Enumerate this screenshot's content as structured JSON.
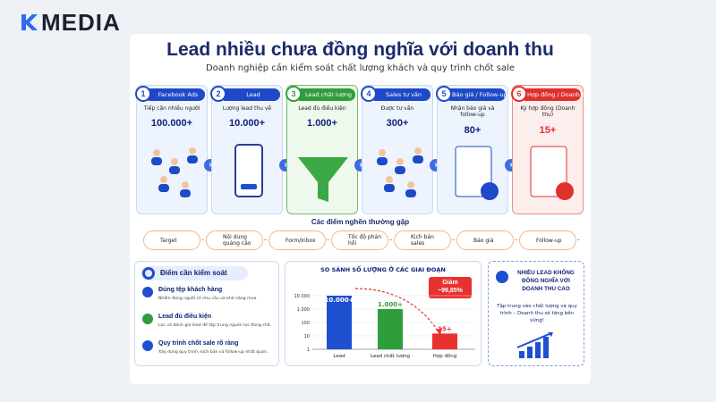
{
  "logo": "MEDIA",
  "title": "Lead nhiều chưa đồng nghĩa với doanh thu",
  "subtitle": "Doanh nghiệp cần kiểm soát chất lượng khách và quy trình chốt sale",
  "steps": [
    {
      "number": "1",
      "label": "Facebook Ads",
      "desc": "Tiếp cận nhiều người",
      "value": "100.000+"
    },
    {
      "number": "2",
      "label": "Lead",
      "desc": "Lượng lead thu về",
      "value": "10.000+"
    },
    {
      "number": "3",
      "label": "Lead chất lượng",
      "desc": "Lead đủ điều kiện",
      "value": "1.000+"
    },
    {
      "number": "4",
      "label": "Sales tư vấn",
      "desc": "Được tư vấn",
      "value": "300+"
    },
    {
      "number": "5",
      "label": "Báo giá / Follow-up",
      "desc": "Nhận báo giá và follow-up",
      "value": "80+"
    },
    {
      "number": "6",
      "label": "Hợp đồng / Doanh thu",
      "desc": "Ký hợp đồng (Doanh thu)",
      "value": "15+"
    }
  ],
  "bottlenecks": {
    "title": "Các điểm nghẽn thường gặp",
    "items": [
      "Target",
      "Nội dung quảng cáo",
      "Form/Inbox",
      "Tốc độ phản hồi",
      "Kịch bản sales",
      "Báo giá",
      "Follow-up"
    ]
  },
  "controls": {
    "title": "Điểm cần kiểm soát",
    "items": [
      {
        "title": "Đúng tệp khách hàng",
        "desc": "Nhắm đúng người có nhu cầu và khả năng mua."
      },
      {
        "title": "Lead đủ điều kiện",
        "desc": "Lọc và đánh giá lead để tập trung nguồn lực đúng chỗ."
      },
      {
        "title": "Quy trình chốt sale rõ ràng",
        "desc": "Xây dựng quy trình, kịch bản và follow-up nhất quán."
      }
    ]
  },
  "chart_data": {
    "type": "bar",
    "title": "SO SÁNH SỐ LƯỢNG Ở CÁC GIAI ĐOẠN",
    "categories": [
      "Lead",
      "Lead chất lượng",
      "Hợp đồng"
    ],
    "values": [
      10000,
      1000,
      15
    ],
    "value_labels": [
      "10.000+",
      "1.000+",
      "15+"
    ],
    "colors": [
      "#1f4fd1",
      "#2e9e3a",
      "#e8312f"
    ],
    "log_scale": true,
    "ylim": [
      1,
      10000
    ],
    "yticks": [
      {
        "value": 10000,
        "label": "10.000"
      },
      {
        "value": 1000,
        "label": "1.000"
      },
      100,
      10,
      1
    ],
    "grid": true,
    "annotation": "Giảm ~99,85%"
  },
  "callout": {
    "title": "NHIỀU LEAD KHÔNG ĐỒNG NGHĨA VỚI DOANH THU CAO",
    "text": "Tập trung vào chất lượng và quy trình – Doanh thu sẽ tăng bền vững!"
  }
}
